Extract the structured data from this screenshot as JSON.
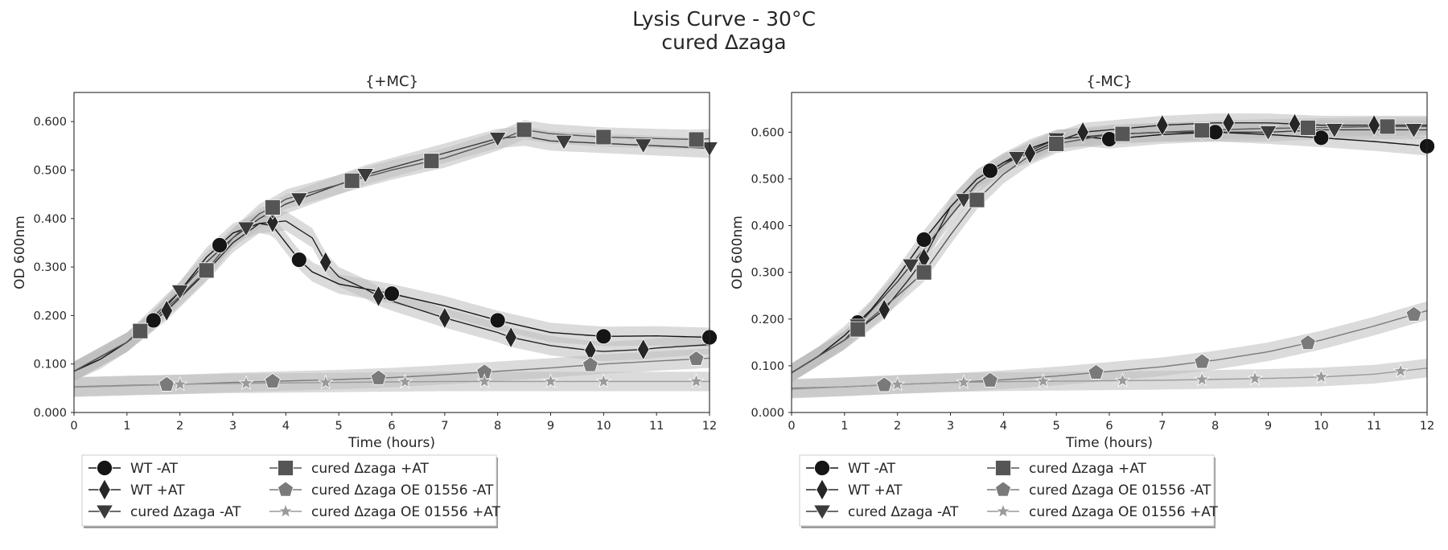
{
  "figure": {
    "title_line1": "Lysis Curve - 30°C",
    "title_line2": "cured Δzaga"
  },
  "colors": {
    "WT -AT": "#151515",
    "WT +AT": "#262626",
    "cured Δzaga -AT": "#3b3b3b",
    "cured Δzaga +AT": "#555555",
    "cured Δzaga OE 01556 -AT": "#7a7a7a",
    "cured Δzaga OE 01556 +AT": "#9a9a9a",
    "band": "#bdbdbd"
  },
  "legend": {
    "placement": "below-left",
    "columns": 2,
    "entries": [
      {
        "label": "WT -AT",
        "marker": "circle"
      },
      {
        "label": "WT +AT",
        "marker": "diamond"
      },
      {
        "label": "cured Δzaga -AT",
        "marker": "triangle-down"
      },
      {
        "label": "cured Δzaga +AT",
        "marker": "square"
      },
      {
        "label": "cured Δzaga OE 01556 -AT",
        "marker": "pentagon"
      },
      {
        "label": "cured Δzaga OE 01556 +AT",
        "marker": "star"
      }
    ]
  },
  "chart_data": [
    {
      "type": "line",
      "title": "{+MC}",
      "xlabel": "Time (hours)",
      "ylabel": "OD 600nm",
      "xlim": [
        0,
        12
      ],
      "ylim": [
        0,
        0.66
      ],
      "xticks": [
        "0",
        "1",
        "2",
        "3",
        "4",
        "5",
        "6",
        "7",
        "8",
        "9",
        "10",
        "11",
        "12"
      ],
      "yticks": [
        "0.000",
        "0.100",
        "0.200",
        "0.300",
        "0.400",
        "0.500",
        "0.600"
      ],
      "grid": false,
      "uncertainty_band": true,
      "series": [
        {
          "name": "WT -AT",
          "marker": "circle",
          "x": [
            0,
            0.5,
            1,
            1.5,
            2,
            2.5,
            2.75,
            3,
            3.5,
            3.75,
            4,
            4.25,
            4.5,
            5,
            5.5,
            6,
            7,
            8,
            9,
            10,
            11,
            12
          ],
          "y": [
            0.085,
            0.11,
            0.145,
            0.19,
            0.25,
            0.32,
            0.345,
            0.37,
            0.39,
            0.385,
            0.35,
            0.315,
            0.29,
            0.265,
            0.255,
            0.245,
            0.22,
            0.19,
            0.165,
            0.157,
            0.158,
            0.155
          ],
          "marker_x": [
            1.5,
            2.75,
            4.25,
            6,
            8,
            10,
            12
          ]
        },
        {
          "name": "WT +AT",
          "marker": "diamond",
          "x": [
            0,
            1,
            1.75,
            2.5,
            3,
            3.5,
            4,
            4.5,
            4.75,
            5,
            5.5,
            5.75,
            6,
            7,
            8,
            8.25,
            9,
            9.75,
            10,
            10.75,
            11,
            12
          ],
          "y": [
            0.085,
            0.145,
            0.21,
            0.29,
            0.35,
            0.39,
            0.395,
            0.36,
            0.31,
            0.28,
            0.255,
            0.24,
            0.23,
            0.195,
            0.165,
            0.155,
            0.138,
            0.128,
            0.126,
            0.13,
            0.133,
            0.14
          ],
          "marker_x": [
            1.75,
            3.75,
            4.75,
            5.75,
            7,
            8.25,
            9.75,
            10.75
          ]
        },
        {
          "name": "cured Δzaga -AT",
          "marker": "triangle-down",
          "x": [
            0,
            1,
            2,
            2.5,
            3,
            3.25,
            3.5,
            4,
            4.5,
            5,
            5.5,
            6,
            7,
            8,
            8.5,
            9,
            10,
            11,
            12
          ],
          "y": [
            0.085,
            0.145,
            0.25,
            0.31,
            0.36,
            0.38,
            0.4,
            0.43,
            0.45,
            0.47,
            0.49,
            0.505,
            0.535,
            0.565,
            0.57,
            0.56,
            0.555,
            0.55,
            0.545
          ],
          "marker_x": [
            2,
            3.25,
            3.75,
            4.25,
            5.5,
            8,
            9.25,
            10.75,
            12
          ]
        },
        {
          "name": "cured Δzaga +AT",
          "marker": "square",
          "x": [
            0,
            1,
            1.25,
            2,
            2.5,
            3,
            3.5,
            3.75,
            4,
            5,
            5.25,
            6,
            7,
            8,
            8.5,
            9,
            10,
            11,
            11.75,
            12
          ],
          "y": [
            0.085,
            0.145,
            0.168,
            0.24,
            0.293,
            0.36,
            0.41,
            0.423,
            0.44,
            0.47,
            0.478,
            0.5,
            0.525,
            0.56,
            0.583,
            0.575,
            0.568,
            0.565,
            0.563,
            0.565
          ],
          "marker_x": [
            1.25,
            2.5,
            3.75,
            5.25,
            6.75,
            8.5,
            10,
            11.75
          ]
        },
        {
          "name": "cured Δzaga OE 01556 -AT",
          "marker": "pentagon",
          "x": [
            0,
            1,
            2,
            3,
            4,
            5,
            6,
            7,
            8,
            9,
            10,
            11,
            12
          ],
          "y": [
            0.053,
            0.056,
            0.058,
            0.062,
            0.065,
            0.068,
            0.072,
            0.078,
            0.085,
            0.092,
            0.1,
            0.106,
            0.112
          ],
          "marker_x": [
            1.75,
            3.75,
            5.75,
            7.75,
            9.75,
            11.75
          ]
        },
        {
          "name": "cured Δzaga OE 01556 +AT",
          "marker": "star",
          "x": [
            0,
            1,
            2,
            3,
            4,
            5,
            6,
            7,
            8,
            9,
            10,
            11,
            12
          ],
          "y": [
            0.052,
            0.055,
            0.058,
            0.06,
            0.061,
            0.062,
            0.063,
            0.064,
            0.064,
            0.064,
            0.064,
            0.064,
            0.064
          ],
          "marker_x": [
            2,
            3.25,
            4.75,
            6.25,
            7.75,
            9,
            10,
            11.75
          ]
        }
      ]
    },
    {
      "type": "line",
      "title": "{-MC}",
      "xlabel": "Time (hours)",
      "ylabel": "OD 600nm",
      "xlim": [
        0,
        12
      ],
      "ylim": [
        0,
        0.685
      ],
      "xticks": [
        "0",
        "1",
        "2",
        "3",
        "4",
        "5",
        "6",
        "7",
        "8",
        "9",
        "10",
        "11",
        "12"
      ],
      "yticks": [
        "0.000",
        "0.100",
        "0.200",
        "0.300",
        "0.400",
        "0.500",
        "0.600"
      ],
      "grid": false,
      "uncertainty_band": true,
      "series": [
        {
          "name": "WT -AT",
          "marker": "circle",
          "x": [
            0,
            0.5,
            1,
            1.5,
            2,
            2.5,
            3,
            3.5,
            4,
            4.5,
            5,
            5.5,
            6,
            7,
            8,
            9,
            10,
            11,
            12
          ],
          "y": [
            0.085,
            0.12,
            0.165,
            0.22,
            0.29,
            0.37,
            0.44,
            0.5,
            0.535,
            0.565,
            0.585,
            0.59,
            0.585,
            0.595,
            0.6,
            0.595,
            0.588,
            0.58,
            0.57
          ],
          "marker_x": [
            1.25,
            2.5,
            3.75,
            6,
            8,
            10,
            12
          ]
        },
        {
          "name": "WT +AT",
          "marker": "diamond",
          "x": [
            0,
            1,
            1.75,
            2.25,
            2.5,
            3,
            3.5,
            4,
            4.5,
            5,
            5.5,
            6,
            7,
            8,
            9,
            10,
            11,
            12
          ],
          "y": [
            0.085,
            0.155,
            0.22,
            0.29,
            0.33,
            0.44,
            0.5,
            0.535,
            0.555,
            0.58,
            0.6,
            0.605,
            0.615,
            0.62,
            0.62,
            0.615,
            0.615,
            0.615
          ],
          "marker_x": [
            1.75,
            2.5,
            4.5,
            5.5,
            7,
            8.25,
            9.5,
            11
          ]
        },
        {
          "name": "cured Δzaga -AT",
          "marker": "triangle-down",
          "x": [
            0,
            1,
            2,
            2.5,
            3,
            3.5,
            4,
            4.5,
            5,
            5.5,
            6,
            7,
            8,
            9,
            10,
            11,
            12
          ],
          "y": [
            0.085,
            0.155,
            0.28,
            0.35,
            0.42,
            0.49,
            0.53,
            0.56,
            0.585,
            0.59,
            0.595,
            0.6,
            0.6,
            0.6,
            0.605,
            0.605,
            0.605
          ],
          "marker_x": [
            1.25,
            2.25,
            3.25,
            4.25,
            5,
            6.25,
            7.75,
            9,
            10.25,
            11.75
          ]
        },
        {
          "name": "cured Δzaga +AT",
          "marker": "square",
          "x": [
            0,
            1,
            1.25,
            2,
            2.5,
            3,
            3.5,
            4,
            4.5,
            5,
            6,
            7,
            8,
            9,
            10,
            11,
            12
          ],
          "y": [
            0.085,
            0.155,
            0.178,
            0.25,
            0.3,
            0.38,
            0.455,
            0.51,
            0.55,
            0.575,
            0.595,
            0.6,
            0.605,
            0.608,
            0.61,
            0.612,
            0.612
          ],
          "marker_x": [
            1.25,
            2.5,
            3.5,
            5,
            6.25,
            7.75,
            9.75,
            11.25
          ]
        },
        {
          "name": "cured Δzaga OE 01556 -AT",
          "marker": "pentagon",
          "x": [
            0,
            1,
            2,
            3,
            4,
            5,
            6,
            7,
            8,
            9,
            10,
            11,
            12
          ],
          "y": [
            0.052,
            0.055,
            0.06,
            0.064,
            0.07,
            0.078,
            0.088,
            0.098,
            0.112,
            0.13,
            0.155,
            0.185,
            0.218
          ],
          "marker_x": [
            1.75,
            3.75,
            5.75,
            7.75,
            9.75,
            11.75
          ]
        },
        {
          "name": "cured Δzaga OE 01556 +AT",
          "marker": "star",
          "x": [
            0,
            1,
            2,
            3,
            4,
            5,
            6,
            7,
            8,
            9,
            10,
            11,
            12
          ],
          "y": [
            0.05,
            0.055,
            0.06,
            0.064,
            0.066,
            0.067,
            0.068,
            0.069,
            0.071,
            0.073,
            0.076,
            0.082,
            0.095
          ],
          "marker_x": [
            2,
            3.25,
            4.75,
            6.25,
            7.75,
            8.75,
            10,
            11.5
          ]
        }
      ]
    }
  ]
}
